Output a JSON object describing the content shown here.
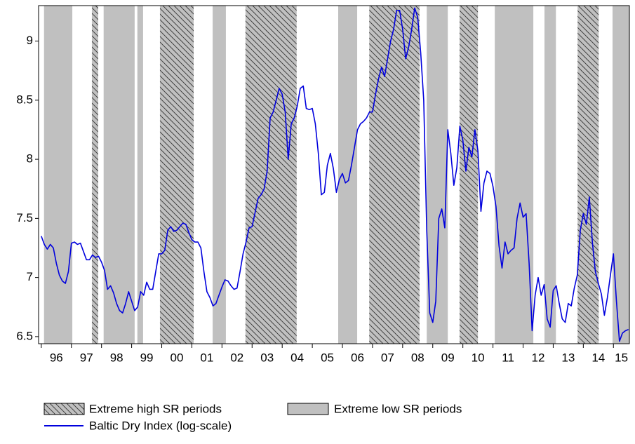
{
  "chart_data": {
    "type": "line",
    "x": [
      1996.0,
      1996.1,
      1996.2,
      1996.3,
      1996.4,
      1996.5,
      1996.6,
      1996.7,
      1996.8,
      1996.9,
      1997.0,
      1997.1,
      1997.2,
      1997.3,
      1997.4,
      1997.5,
      1997.6,
      1997.7,
      1997.8,
      1997.9,
      1998.0,
      1998.1,
      1998.2,
      1998.3,
      1998.4,
      1998.5,
      1998.6,
      1998.7,
      1998.8,
      1998.9,
      1999.0,
      1999.1,
      1999.2,
      1999.3,
      1999.4,
      1999.5,
      1999.6,
      1999.7,
      1999.8,
      1999.9,
      2000.0,
      2000.1,
      2000.2,
      2000.3,
      2000.4,
      2000.5,
      2000.6,
      2000.7,
      2000.8,
      2000.9,
      2001.0,
      2001.1,
      2001.2,
      2001.3,
      2001.4,
      2001.5,
      2001.6,
      2001.7,
      2001.8,
      2001.9,
      2002.0,
      2002.1,
      2002.2,
      2002.3,
      2002.4,
      2002.5,
      2002.6,
      2002.7,
      2002.8,
      2002.9,
      2003.0,
      2003.1,
      2003.2,
      2003.3,
      2003.4,
      2003.5,
      2003.6,
      2003.7,
      2003.8,
      2003.9,
      2004.0,
      2004.1,
      2004.2,
      2004.3,
      2004.4,
      2004.5,
      2004.6,
      2004.7,
      2004.8,
      2004.9,
      2005.0,
      2005.1,
      2005.2,
      2005.3,
      2005.4,
      2005.5,
      2005.6,
      2005.7,
      2005.8,
      2005.9,
      2006.0,
      2006.1,
      2006.2,
      2006.3,
      2006.4,
      2006.5,
      2006.6,
      2006.7,
      2006.8,
      2006.9,
      2007.0,
      2007.1,
      2007.2,
      2007.3,
      2007.4,
      2007.5,
      2007.6,
      2007.7,
      2007.8,
      2007.9,
      2008.0,
      2008.1,
      2008.2,
      2008.3,
      2008.4,
      2008.5,
      2008.6,
      2008.7,
      2008.8,
      2008.9,
      2009.0,
      2009.1,
      2009.2,
      2009.3,
      2009.4,
      2009.5,
      2009.6,
      2009.7,
      2009.8,
      2009.9,
      2010.0,
      2010.1,
      2010.2,
      2010.3,
      2010.4,
      2010.5,
      2010.6,
      2010.7,
      2010.8,
      2010.9,
      2011.0,
      2011.1,
      2011.2,
      2011.3,
      2011.4,
      2011.5,
      2011.6,
      2011.7,
      2011.8,
      2011.9,
      2012.0,
      2012.1,
      2012.2,
      2012.3,
      2012.4,
      2012.5,
      2012.6,
      2012.7,
      2012.8,
      2012.9,
      2013.0,
      2013.1,
      2013.2,
      2013.3,
      2013.4,
      2013.5,
      2013.6,
      2013.7,
      2013.8,
      2013.9,
      2014.0,
      2014.1,
      2014.2,
      2014.3,
      2014.4,
      2014.5,
      2014.6,
      2014.7,
      2014.8,
      2014.9,
      2015.0,
      2015.1,
      2015.2,
      2015.3,
      2015.4,
      2015.5
    ],
    "series": [
      {
        "name": "Baltic Dry Index (log-scale)",
        "color": "#0000dd",
        "values": [
          7.35,
          7.28,
          7.24,
          7.28,
          7.25,
          7.12,
          7.02,
          6.97,
          6.95,
          7.05,
          7.29,
          7.3,
          7.28,
          7.29,
          7.22,
          7.15,
          7.15,
          7.19,
          7.17,
          7.18,
          7.13,
          7.06,
          6.9,
          6.93,
          6.87,
          6.78,
          6.72,
          6.7,
          6.78,
          6.88,
          6.8,
          6.72,
          6.75,
          6.88,
          6.85,
          6.96,
          6.9,
          6.9,
          7.05,
          7.2,
          7.2,
          7.23,
          7.4,
          7.43,
          7.39,
          7.4,
          7.43,
          7.46,
          7.45,
          7.38,
          7.32,
          7.3,
          7.3,
          7.25,
          7.05,
          6.88,
          6.83,
          6.76,
          6.78,
          6.85,
          6.92,
          6.98,
          6.97,
          6.93,
          6.9,
          6.91,
          7.05,
          7.2,
          7.3,
          7.42,
          7.43,
          7.55,
          7.67,
          7.7,
          7.75,
          7.9,
          8.35,
          8.4,
          8.5,
          8.6,
          8.55,
          8.4,
          8.0,
          8.3,
          8.35,
          8.45,
          8.6,
          8.62,
          8.43,
          8.42,
          8.43,
          8.3,
          8.05,
          7.7,
          7.72,
          7.95,
          8.05,
          7.92,
          7.72,
          7.83,
          7.88,
          7.8,
          7.82,
          7.95,
          8.1,
          8.25,
          8.3,
          8.32,
          8.35,
          8.4,
          8.4,
          8.55,
          8.68,
          8.78,
          8.7,
          8.85,
          9.0,
          9.1,
          9.26,
          9.26,
          9.1,
          8.85,
          8.95,
          9.1,
          9.28,
          9.2,
          8.9,
          8.5,
          7.4,
          6.7,
          6.62,
          6.8,
          7.5,
          7.58,
          7.42,
          8.25,
          8.05,
          7.78,
          7.93,
          8.28,
          8.16,
          7.9,
          8.1,
          8.02,
          8.25,
          8.07,
          7.56,
          7.8,
          7.9,
          7.88,
          7.77,
          7.6,
          7.27,
          7.08,
          7.3,
          7.2,
          7.23,
          7.25,
          7.5,
          7.63,
          7.51,
          7.54,
          7.12,
          6.55,
          6.85,
          7.0,
          6.85,
          6.94,
          6.65,
          6.58,
          6.89,
          6.93,
          6.78,
          6.65,
          6.62,
          6.78,
          6.76,
          6.91,
          7.02,
          7.4,
          7.54,
          7.45,
          7.68,
          7.3,
          7.05,
          6.95,
          6.86,
          6.68,
          6.83,
          7.02,
          7.2,
          6.8,
          6.46,
          6.53,
          6.55,
          6.56
        ]
      }
    ],
    "high_sr_name": "Extreme high SR periods",
    "low_sr_name": "Extreme low SR periods",
    "high_sr_periods": [
      [
        1997.68,
        1997.89
      ],
      [
        1999.94,
        2001.06
      ],
      [
        2002.78,
        2004.48
      ],
      [
        2006.89,
        2008.56
      ],
      [
        2009.89,
        2010.5
      ],
      [
        2013.81,
        2014.51
      ]
    ],
    "low_sr_periods": [
      [
        1996.09,
        1997.03
      ],
      [
        1998.07,
        1999.1
      ],
      [
        1999.19,
        1999.38
      ],
      [
        2001.69,
        2002.13
      ],
      [
        2005.86,
        2006.49
      ],
      [
        2008.8,
        2009.5
      ],
      [
        2011.06,
        2012.34
      ],
      [
        2012.71,
        2013.09
      ],
      [
        2014.97,
        2015.53
      ]
    ],
    "xlim": [
      1995.91,
      2015.53
    ],
    "ylim": [
      6.44,
      9.3
    ],
    "yticks": [
      {
        "value": 6.5,
        "label": "6.5"
      },
      7,
      7.5,
      8,
      8.5,
      9
    ],
    "xticks": [
      {
        "value": 1996,
        "label": "96"
      },
      {
        "value": 1997,
        "label": "97"
      },
      {
        "value": 1998,
        "label": "98"
      },
      {
        "value": 1999,
        "label": "99"
      },
      {
        "value": 2000,
        "label": "00"
      },
      {
        "value": 2001,
        "label": "01"
      },
      {
        "value": 2002,
        "label": "02"
      },
      {
        "value": 2003,
        "label": "03"
      },
      {
        "value": 2004,
        "label": "04"
      },
      {
        "value": 2005,
        "label": "05"
      },
      {
        "value": 2006,
        "label": "06"
      },
      {
        "value": 2007,
        "label": "07"
      },
      {
        "value": 2008,
        "label": "08"
      },
      {
        "value": 2009,
        "label": "09"
      },
      {
        "value": 2010,
        "label": "10"
      },
      {
        "value": 2011,
        "label": "11"
      },
      {
        "value": 2012,
        "label": "12"
      },
      {
        "value": 2013,
        "label": "13"
      },
      {
        "value": 2014,
        "label": "14"
      },
      {
        "value": 2015,
        "label": "15"
      }
    ]
  }
}
